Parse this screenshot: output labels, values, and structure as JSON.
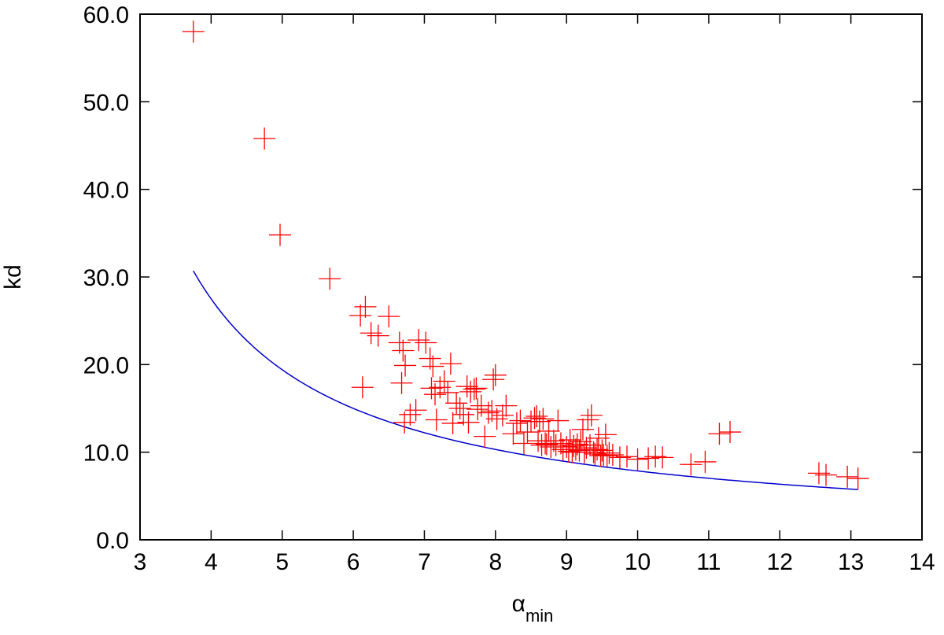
{
  "chart_data": {
    "type": "scatter",
    "xlabel": "α",
    "xlabel_sub": "min",
    "ylabel": "kd",
    "xlim": [
      3,
      14
    ],
    "ylim": [
      0,
      60
    ],
    "x_ticks": [
      "3",
      "4",
      "5",
      "6",
      "7",
      "8",
      "9",
      "10",
      "11",
      "12",
      "13",
      "14"
    ],
    "y_ticks": [
      "0.0",
      "10.0",
      "20.0",
      "30.0",
      "40.0",
      "50.0",
      "60.0"
    ],
    "grid": false,
    "colors": {
      "points": "#ff0000",
      "fit": "#0000cc",
      "axes": "#000000"
    },
    "points": [
      [
        3.75,
        58.0
      ],
      [
        4.75,
        45.8
      ],
      [
        4.97,
        34.8
      ],
      [
        5.67,
        29.8
      ],
      [
        6.1,
        25.6
      ],
      [
        6.17,
        26.6
      ],
      [
        6.25,
        23.6
      ],
      [
        6.35,
        23.3
      ],
      [
        6.5,
        25.5
      ],
      [
        6.13,
        17.4
      ],
      [
        6.65,
        22.5
      ],
      [
        6.7,
        21.6
      ],
      [
        6.73,
        19.9
      ],
      [
        6.68,
        17.9
      ],
      [
        6.72,
        13.4
      ],
      [
        6.8,
        14.3
      ],
      [
        6.88,
        14.8
      ],
      [
        6.92,
        22.8
      ],
      [
        7.02,
        22.5
      ],
      [
        7.08,
        20.7
      ],
      [
        7.12,
        19.8
      ],
      [
        7.1,
        17.3
      ],
      [
        7.15,
        16.6
      ],
      [
        7.17,
        13.7
      ],
      [
        7.22,
        17.4
      ],
      [
        7.28,
        18.1
      ],
      [
        7.33,
        16.8
      ],
      [
        7.37,
        20.1
      ],
      [
        7.4,
        13.3
      ],
      [
        7.45,
        15.6
      ],
      [
        7.5,
        15.0
      ],
      [
        7.55,
        14.3
      ],
      [
        7.6,
        17.5
      ],
      [
        7.62,
        13.4
      ],
      [
        7.65,
        16.9
      ],
      [
        7.7,
        17.2
      ],
      [
        7.73,
        17.3
      ],
      [
        7.75,
        14.9
      ],
      [
        7.8,
        15.3
      ],
      [
        7.85,
        11.8
      ],
      [
        7.9,
        14.5
      ],
      [
        7.95,
        14.7
      ],
      [
        7.97,
        18.3
      ],
      [
        8.0,
        18.8
      ],
      [
        8.02,
        13.8
      ],
      [
        8.1,
        14.2
      ],
      [
        8.15,
        15.3
      ],
      [
        8.25,
        12.1
      ],
      [
        8.3,
        13.3
      ],
      [
        8.35,
        13.6
      ],
      [
        8.4,
        11.0
      ],
      [
        8.45,
        12.3
      ],
      [
        8.5,
        13.5
      ],
      [
        8.55,
        13.9
      ],
      [
        8.58,
        14.1
      ],
      [
        8.6,
        11.3
      ],
      [
        8.62,
        13.5
      ],
      [
        8.65,
        10.8
      ],
      [
        8.67,
        13.8
      ],
      [
        8.7,
        11.0
      ],
      [
        8.72,
        10.9
      ],
      [
        8.75,
        12.4
      ],
      [
        8.78,
        10.6
      ],
      [
        8.82,
        11.3
      ],
      [
        8.85,
        10.8
      ],
      [
        8.88,
        13.6
      ],
      [
        8.92,
        11.0
      ],
      [
        8.95,
        10.3
      ],
      [
        9.0,
        10.6
      ],
      [
        9.03,
        10.1
      ],
      [
        9.05,
        11.4
      ],
      [
        9.08,
        10.0
      ],
      [
        9.1,
        10.7
      ],
      [
        9.13,
        10.3
      ],
      [
        9.15,
        10.9
      ],
      [
        9.18,
        10.2
      ],
      [
        9.2,
        11.2
      ],
      [
        9.23,
        12.6
      ],
      [
        9.25,
        10.0
      ],
      [
        9.28,
        10.5
      ],
      [
        9.3,
        13.7
      ],
      [
        9.33,
        10.8
      ],
      [
        9.35,
        14.2
      ],
      [
        9.38,
        10.0
      ],
      [
        9.4,
        9.8
      ],
      [
        9.43,
        10.3
      ],
      [
        9.45,
        11.6
      ],
      [
        9.48,
        9.6
      ],
      [
        9.5,
        10.2
      ],
      [
        9.52,
        9.7
      ],
      [
        9.55,
        12.0
      ],
      [
        9.57,
        9.6
      ],
      [
        9.6,
        9.9
      ],
      [
        9.65,
        9.7
      ],
      [
        9.75,
        9.4
      ],
      [
        9.85,
        9.5
      ],
      [
        10.0,
        9.2
      ],
      [
        10.15,
        9.3
      ],
      [
        10.25,
        9.5
      ],
      [
        10.35,
        9.4
      ],
      [
        10.75,
        8.6
      ],
      [
        10.95,
        8.9
      ],
      [
        11.15,
        12.1
      ],
      [
        11.3,
        12.3
      ],
      [
        12.55,
        7.6
      ],
      [
        12.65,
        7.4
      ],
      [
        12.95,
        7.2
      ],
      [
        13.1,
        7.0
      ]
    ],
    "fit_curve": {
      "form": "y = a / (x - c)",
      "a": 66.0,
      "c": 1.6,
      "x_range": [
        3.75,
        13.1
      ]
    }
  }
}
